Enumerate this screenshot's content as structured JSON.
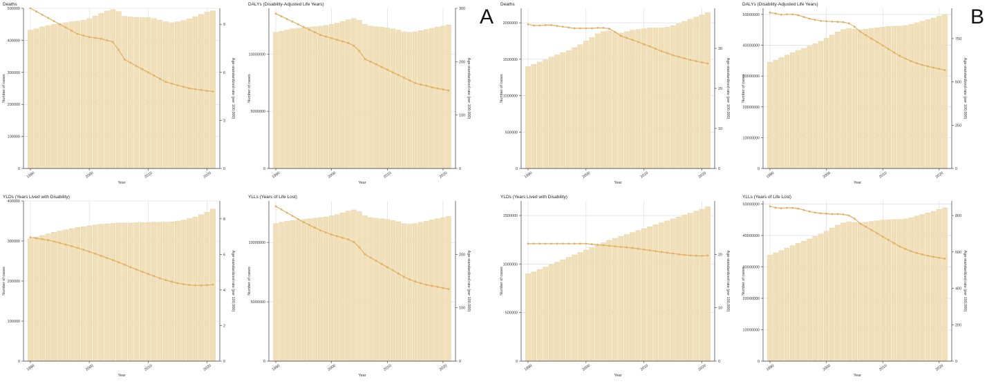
{
  "panel_labels": [
    "A",
    "B"
  ],
  "axis_common": {
    "xlabel": "Year",
    "ylabel_left": "Number of cases",
    "ylabel_right": "Age-standardized rate (per 100,000)"
  },
  "colors": {
    "bar": "#f0dfb8",
    "bar_edge": "#e3cc98",
    "line": "#e0b060",
    "grid": "#d8d8d8",
    "axis": "#333333"
  },
  "chart_data": [
    {
      "type": "bar+line",
      "panel": "A",
      "title": "Deaths",
      "x": [
        1990,
        1991,
        1992,
        1993,
        1994,
        1995,
        1996,
        1997,
        1998,
        1999,
        2000,
        2001,
        2002,
        2003,
        2004,
        2005,
        2006,
        2007,
        2008,
        2009,
        2010,
        2011,
        2012,
        2013,
        2014,
        2015,
        2016,
        2017,
        2018,
        2019,
        2020,
        2021
      ],
      "bars": [
        432000,
        436000,
        442000,
        446000,
        450000,
        452000,
        455000,
        458000,
        460000,
        463000,
        468000,
        476000,
        484000,
        492000,
        496000,
        490000,
        475000,
        473000,
        472000,
        471000,
        471000,
        468000,
        463000,
        458000,
        455000,
        458000,
        462000,
        467000,
        474000,
        481000,
        488000,
        492000
      ],
      "line": [
        10.0,
        9.8,
        9.6,
        9.4,
        9.2,
        9.0,
        8.8,
        8.6,
        8.4,
        8.3,
        8.2,
        8.15,
        8.1,
        8.0,
        7.9,
        7.4,
        6.8,
        6.6,
        6.4,
        6.2,
        6.0,
        5.8,
        5.6,
        5.4,
        5.3,
        5.2,
        5.1,
        5.0,
        4.95,
        4.9,
        4.85,
        4.8
      ],
      "ylim_left": [
        0,
        500000
      ],
      "yticks_left": [
        0,
        100000,
        200000,
        300000,
        400000,
        500000
      ],
      "ylim_right": [
        0,
        10
      ],
      "yticks_right": [
        0,
        3,
        6,
        9
      ],
      "xticks": [
        1990,
        2000,
        2010,
        2020
      ]
    },
    {
      "type": "bar+line",
      "panel": "A",
      "title": "DALYs (Disability-Adjusted Life Years)",
      "x": [
        1990,
        1991,
        1992,
        1993,
        1994,
        1995,
        1996,
        1997,
        1998,
        1999,
        2000,
        2001,
        2002,
        2003,
        2004,
        2005,
        2006,
        2007,
        2008,
        2009,
        2010,
        2011,
        2012,
        2013,
        2014,
        2015,
        2016,
        2017,
        2018,
        2019,
        2020,
        2021
      ],
      "bars": [
        11900000,
        12000000,
        12100000,
        12200000,
        12250000,
        12300000,
        12350000,
        12400000,
        12450000,
        12500000,
        12600000,
        12700000,
        12850000,
        13000000,
        13100000,
        12950000,
        12600000,
        12450000,
        12400000,
        12350000,
        12300000,
        12200000,
        12100000,
        11950000,
        11900000,
        11950000,
        12050000,
        12150000,
        12250000,
        12350000,
        12450000,
        12550000
      ],
      "line": [
        290,
        285,
        280,
        275,
        270,
        265,
        260,
        255,
        250,
        247,
        244,
        241,
        238,
        235,
        230,
        220,
        205,
        200,
        195,
        190,
        185,
        180,
        175,
        170,
        165,
        160,
        157,
        155,
        152,
        150,
        148,
        146
      ],
      "ylim_left": [
        0,
        14000000
      ],
      "yticks_left": [
        0,
        5000000,
        10000000
      ],
      "ylim_right": [
        0,
        300
      ],
      "yticks_right": [
        0,
        100,
        200,
        300
      ],
      "xticks": [
        1990,
        2000,
        2010,
        2020
      ]
    },
    {
      "type": "bar+line",
      "panel": "A",
      "title": "YLDs (Years Lived with Disability)",
      "x": [
        1990,
        1991,
        1992,
        1993,
        1994,
        1995,
        1996,
        1997,
        1998,
        1999,
        2000,
        2001,
        2002,
        2003,
        2004,
        2005,
        2006,
        2007,
        2008,
        2009,
        2010,
        2011,
        2012,
        2013,
        2014,
        2015,
        2016,
        2017,
        2018,
        2019,
        2020,
        2021
      ],
      "bars": [
        306000,
        310000,
        314000,
        318000,
        322000,
        325000,
        328000,
        331000,
        334000,
        336000,
        338000,
        340000,
        342000,
        343000,
        344000,
        345000,
        345000,
        345000,
        346000,
        346000,
        346000,
        347000,
        347000,
        347000,
        348000,
        350000,
        352000,
        356000,
        360000,
        366000,
        372000,
        380000
      ],
      "line": [
        6.95,
        6.9,
        6.85,
        6.8,
        6.72,
        6.64,
        6.55,
        6.46,
        6.36,
        6.26,
        6.15,
        6.04,
        5.92,
        5.8,
        5.68,
        5.55,
        5.42,
        5.28,
        5.15,
        5.02,
        4.9,
        4.78,
        4.66,
        4.55,
        4.46,
        4.38,
        4.32,
        4.28,
        4.26,
        4.25,
        4.27,
        4.3
      ],
      "ylim_left": [
        0,
        400000
      ],
      "yticks_left": [
        0,
        100000,
        200000,
        300000,
        400000
      ],
      "ylim_right": [
        0,
        9
      ],
      "yticks_right": [
        0,
        2,
        4,
        6,
        8
      ],
      "xticks": [
        1990,
        2000,
        2010,
        2020
      ]
    },
    {
      "type": "bar+line",
      "panel": "A",
      "title": "YLLs (Years of Life Lost)",
      "x": [
        1990,
        1991,
        1992,
        1993,
        1994,
        1995,
        1996,
        1997,
        1998,
        1999,
        2000,
        2001,
        2002,
        2003,
        2004,
        2005,
        2006,
        2007,
        2008,
        2009,
        2010,
        2011,
        2012,
        2013,
        2014,
        2015,
        2016,
        2017,
        2018,
        2019,
        2020,
        2021
      ],
      "bars": [
        11600000,
        11700000,
        11800000,
        11850000,
        11900000,
        11950000,
        12000000,
        12050000,
        12100000,
        12150000,
        12250000,
        12350000,
        12500000,
        12650000,
        12750000,
        12600000,
        12250000,
        12100000,
        12050000,
        12000000,
        11950000,
        11850000,
        11750000,
        11600000,
        11550000,
        11600000,
        11700000,
        11800000,
        11900000,
        12000000,
        12100000,
        12200000
      ],
      "line": [
        290,
        284,
        278,
        272,
        266,
        260,
        255,
        250,
        245,
        241,
        237,
        234,
        231,
        228,
        223,
        213,
        200,
        194,
        188,
        182,
        176,
        170,
        164,
        158,
        153,
        149,
        146,
        143,
        141,
        139,
        137,
        135
      ],
      "ylim_left": [
        0,
        13500000
      ],
      "yticks_left": [
        0,
        5000000,
        10000000
      ],
      "ylim_right": [
        0,
        300
      ],
      "yticks_right": [
        0,
        100,
        200
      ],
      "xticks": [
        1990,
        2000,
        2010,
        2020
      ]
    },
    {
      "type": "bar+line",
      "panel": "B",
      "title": "Deaths",
      "x": [
        1990,
        1991,
        1992,
        1993,
        1994,
        1995,
        1996,
        1997,
        1998,
        1999,
        2000,
        2001,
        2002,
        2003,
        2004,
        2005,
        2006,
        2007,
        2008,
        2009,
        2010,
        2011,
        2012,
        2013,
        2014,
        2015,
        2016,
        2017,
        2018,
        2019,
        2020,
        2021
      ],
      "bars": [
        1400000,
        1430000,
        1460000,
        1490000,
        1530000,
        1560000,
        1590000,
        1620000,
        1660000,
        1700000,
        1750000,
        1800000,
        1850000,
        1880000,
        1890000,
        1870000,
        1860000,
        1880000,
        1900000,
        1910000,
        1920000,
        1930000,
        1930000,
        1930000,
        1940000,
        1960000,
        1990000,
        2020000,
        2050000,
        2080000,
        2110000,
        2140000
      ],
      "line": [
        36.0,
        35.7,
        35.7,
        35.8,
        35.8,
        35.6,
        35.4,
        35.2,
        35.0,
        35.0,
        35.0,
        35.0,
        35.1,
        35.1,
        34.9,
        34.1,
        33.1,
        32.6,
        32.1,
        31.6,
        31.0,
        30.5,
        29.9,
        29.3,
        28.8,
        28.3,
        27.9,
        27.5,
        27.1,
        26.8,
        26.5,
        26.2
      ],
      "ylim_left": [
        0,
        2200000
      ],
      "yticks_left": [
        0,
        500000,
        1000000,
        1500000,
        2000000
      ],
      "ylim_right": [
        0,
        40
      ],
      "yticks_right": [
        0,
        10,
        20,
        30
      ],
      "xticks": [
        1990,
        2000,
        2010,
        2020
      ]
    },
    {
      "type": "bar+line",
      "panel": "B",
      "title": "DALYs (Disability-Adjusted Life Years)",
      "x": [
        1990,
        1991,
        1992,
        1993,
        1994,
        1995,
        1996,
        1997,
        1998,
        1999,
        2000,
        2001,
        2002,
        2003,
        2004,
        2005,
        2006,
        2007,
        2008,
        2009,
        2010,
        2011,
        2012,
        2013,
        2014,
        2015,
        2016,
        2017,
        2018,
        2019,
        2020,
        2021
      ],
      "bars": [
        34500000,
        35200000,
        36000000,
        36800000,
        37600000,
        38300000,
        39000000,
        39700000,
        40500000,
        41300000,
        42300000,
        43300000,
        44300000,
        45100000,
        45500000,
        45200000,
        45000000,
        45200000,
        45500000,
        45700000,
        45900000,
        46100000,
        46200000,
        46200000,
        46400000,
        46800000,
        47300000,
        47800000,
        48300000,
        48800000,
        49400000,
        50000000
      ],
      "line": [
        900,
        895,
        888,
        890,
        890,
        885,
        875,
        865,
        858,
        852,
        850,
        848,
        847,
        845,
        838,
        818,
        790,
        770,
        750,
        730,
        710,
        690,
        670,
        650,
        635,
        620,
        608,
        598,
        590,
        582,
        575,
        568
      ],
      "ylim_left": [
        0,
        52000000
      ],
      "yticks_left": [
        0,
        10000000,
        20000000,
        30000000,
        40000000,
        50000000
      ],
      "ylim_right": [
        0,
        925
      ],
      "yticks_right": [
        0,
        250,
        500,
        750
      ],
      "xticks": [
        1990,
        2000,
        2010,
        2020
      ]
    },
    {
      "type": "bar+line",
      "panel": "B",
      "title": "YLDs (Years Lived with Disability)",
      "x": [
        1990,
        1991,
        1992,
        1993,
        1994,
        1995,
        1996,
        1997,
        1998,
        1999,
        2000,
        2001,
        2002,
        2003,
        2004,
        2005,
        2006,
        2007,
        2008,
        2009,
        2010,
        2011,
        2012,
        2013,
        2014,
        2015,
        2016,
        2017,
        2018,
        2019,
        2020,
        2021
      ],
      "bars": [
        900000,
        920000,
        945000,
        970000,
        995000,
        1020000,
        1045000,
        1070000,
        1095000,
        1120000,
        1145000,
        1170000,
        1195000,
        1220000,
        1245000,
        1265000,
        1285000,
        1305000,
        1325000,
        1345000,
        1365000,
        1385000,
        1405000,
        1425000,
        1445000,
        1465000,
        1485000,
        1505000,
        1525000,
        1545000,
        1565000,
        1590000
      ],
      "line": [
        22.0,
        22.0,
        22.0,
        22.0,
        22.0,
        22.0,
        22.0,
        22.0,
        22.0,
        22.0,
        22.0,
        21.9,
        21.8,
        21.7,
        21.6,
        21.5,
        21.4,
        21.3,
        21.2,
        21.05,
        20.9,
        20.75,
        20.6,
        20.45,
        20.3,
        20.15,
        20.0,
        19.9,
        19.8,
        19.75,
        19.7,
        19.8
      ],
      "ylim_left": [
        0,
        1650000
      ],
      "yticks_left": [
        0,
        500000,
        1000000,
        1500000
      ],
      "ylim_right": [
        0,
        30
      ],
      "yticks_right": [
        0,
        10,
        20
      ],
      "xticks": [
        1990,
        2000,
        2010,
        2020
      ]
    },
    {
      "type": "bar+line",
      "panel": "B",
      "title": "YLLs (Years of Life Lost)",
      "x": [
        1990,
        1991,
        1992,
        1993,
        1994,
        1995,
        1996,
        1997,
        1998,
        1999,
        2000,
        2001,
        2002,
        2003,
        2004,
        2005,
        2006,
        2007,
        2008,
        2009,
        2010,
        2011,
        2012,
        2013,
        2014,
        2015,
        2016,
        2017,
        2018,
        2019,
        2020,
        2021
      ],
      "bars": [
        33800000,
        34500000,
        35200000,
        36000000,
        36800000,
        37500000,
        38200000,
        38900000,
        39700000,
        40500000,
        41400000,
        42400000,
        43300000,
        44000000,
        44400000,
        44200000,
        44000000,
        44200000,
        44500000,
        44700000,
        44900000,
        45000000,
        45100000,
        45100000,
        45300000,
        45700000,
        46200000,
        46700000,
        47200000,
        47700000,
        48300000,
        48800000
      ],
      "line": [
        850,
        843,
        840,
        842,
        842,
        838,
        830,
        822,
        816,
        812,
        810,
        808,
        808,
        806,
        800,
        782,
        756,
        738,
        720,
        702,
        684,
        666,
        648,
        630,
        616,
        604,
        594,
        586,
        579,
        573,
        568,
        563
      ],
      "ylim_left": [
        0,
        51000000
      ],
      "yticks_left": [
        0,
        10000000,
        20000000,
        30000000,
        40000000,
        50000000
      ],
      "ylim_right": [
        0,
        880
      ],
      "yticks_right": [
        0,
        200,
        400,
        600,
        800
      ],
      "xticks": [
        1990,
        2000,
        2010,
        2020
      ]
    }
  ]
}
